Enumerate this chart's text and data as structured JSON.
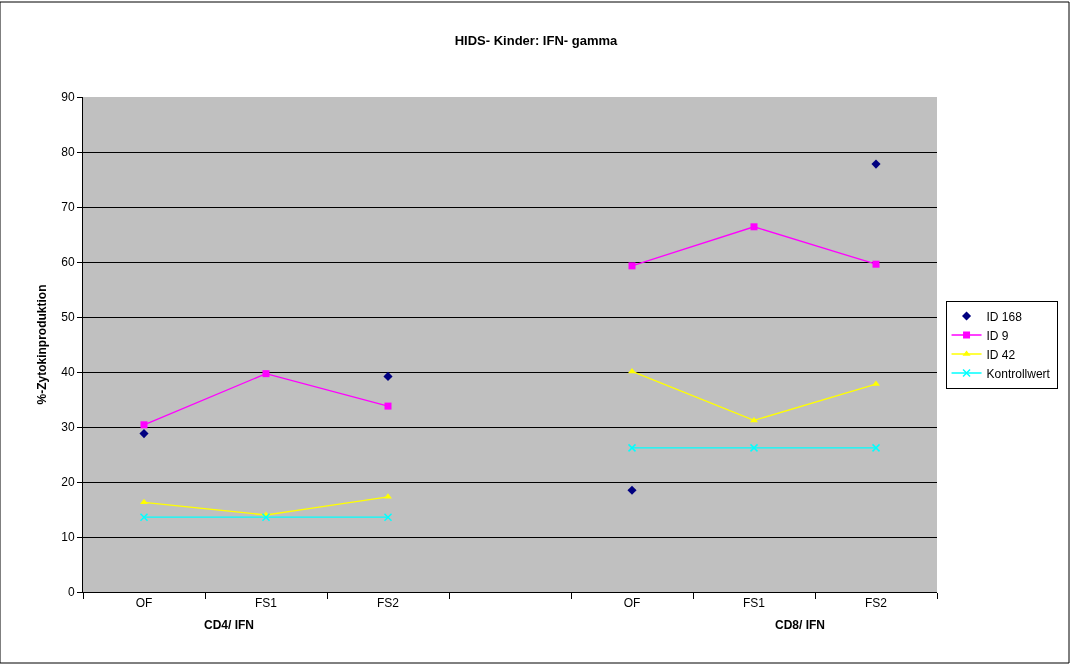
{
  "chart_data": {
    "type": "line",
    "title": "HIDS- Kinder: IFN- gamma",
    "ylabel": "%-Zytokinproduktion",
    "categories": [
      "OF",
      "FS1",
      "FS2",
      null,
      "OF",
      "FS1",
      "FS2"
    ],
    "series": [
      {
        "name": "ID 168",
        "type": "scatter",
        "color": "#000080",
        "marker": "diamond",
        "values": [
          28.8,
          null,
          39.2,
          null,
          18.5,
          null,
          77.8
        ]
      },
      {
        "name": "ID 9",
        "color": "#ff00ff",
        "marker": "square",
        "values": [
          30.4,
          39.7,
          33.8,
          null,
          59.3,
          66.4,
          59.6
        ]
      },
      {
        "name": "ID 42",
        "color": "#ffff00",
        "marker": "triangle",
        "values": [
          16.3,
          14.0,
          17.3,
          null,
          40.1,
          31.2,
          37.8
        ]
      },
      {
        "name": "Kontrollwert",
        "color": "#00ffff",
        "marker": "cross",
        "values": [
          13.6,
          13.6,
          13.6,
          null,
          26.2,
          26.2,
          26.2
        ]
      }
    ],
    "annotations": [
      "CD4/ IFN",
      "CD8/ IFN"
    ],
    "ylim": [
      0,
      90
    ],
    "yticks": [
      0,
      10,
      20,
      30,
      40,
      50,
      60,
      70,
      80,
      90
    ],
    "grid": "y",
    "legend": "right"
  }
}
